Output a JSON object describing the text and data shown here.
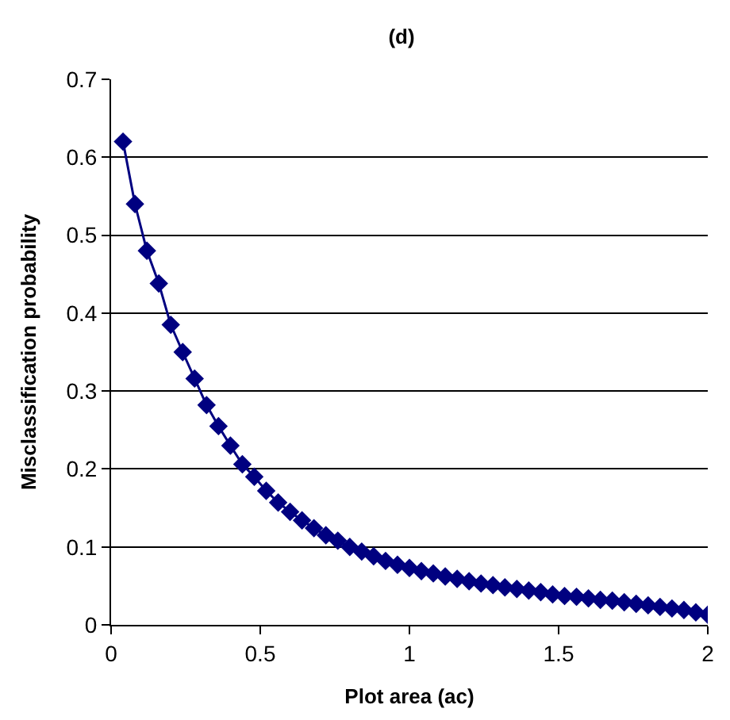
{
  "chart_data": {
    "type": "line",
    "title": "(d)",
    "xlabel": "Plot area (ac)",
    "ylabel": "Misclassification probability",
    "x": [
      0.04,
      0.08,
      0.12,
      0.16,
      0.2,
      0.24,
      0.28,
      0.32,
      0.36,
      0.4,
      0.44,
      0.48,
      0.52,
      0.56,
      0.6,
      0.64,
      0.68,
      0.72,
      0.76,
      0.8,
      0.84,
      0.88,
      0.92,
      0.96,
      1.0,
      1.04,
      1.08,
      1.12,
      1.16,
      1.2,
      1.24,
      1.28,
      1.32,
      1.36,
      1.4,
      1.44,
      1.48,
      1.52,
      1.56,
      1.6,
      1.64,
      1.68,
      1.72,
      1.76,
      1.8,
      1.84,
      1.88,
      1.92,
      1.96,
      2.0
    ],
    "series": [
      {
        "color": "#000080",
        "values": [
          0.62,
          0.54,
          0.48,
          0.438,
          0.385,
          0.35,
          0.316,
          0.282,
          0.255,
          0.23,
          0.206,
          0.19,
          0.172,
          0.157,
          0.145,
          0.134,
          0.124,
          0.115,
          0.108,
          0.1,
          0.094,
          0.088,
          0.082,
          0.077,
          0.073,
          0.069,
          0.066,
          0.062,
          0.059,
          0.056,
          0.053,
          0.051,
          0.048,
          0.046,
          0.044,
          0.042,
          0.039,
          0.037,
          0.036,
          0.034,
          0.032,
          0.031,
          0.029,
          0.027,
          0.025,
          0.023,
          0.021,
          0.019,
          0.016,
          0.013
        ]
      }
    ],
    "xlim": [
      0,
      2
    ],
    "xticks": [
      0,
      0.5,
      1,
      1.5,
      2
    ],
    "ylim": [
      0,
      0.7
    ],
    "yticks": [
      0,
      0.1,
      0.2,
      0.3,
      0.4,
      0.5,
      0.6,
      0.7
    ],
    "grid": "y",
    "marker": "diamond",
    "line_style": "solid",
    "legend": false
  }
}
